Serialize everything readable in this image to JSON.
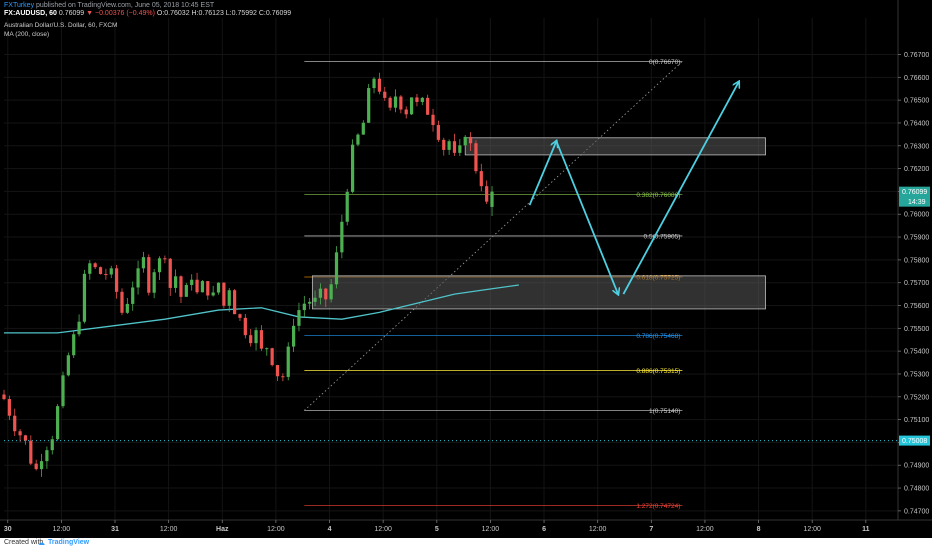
{
  "header": {
    "author": "FXTurkey",
    "published_text": "published on TradingView.com, June 05, 2018 10:45 EST",
    "symbol": "FX:AUDUSD, 60",
    "last": "0.76099",
    "change": "▼ −0.00376 (−0.49%)",
    "ohlc": "O:0.76032 H:0.76123 L:0.75992 C:0.76099"
  },
  "legend": {
    "name": "Australian Dollar/U.S. Dollar, 60, FXCM",
    "indicator": "MA (200, close)"
  },
  "footer": {
    "created_with": "Created with",
    "brand": "TradingView"
  },
  "colors": {
    "bull": "#26a69a",
    "bull_bright": "#4caf50",
    "bear": "#ef5350",
    "ma": "#4fc3c9",
    "arrow": "#4dd0e1",
    "zone_fill": "#5a5a5a",
    "zone_stroke": "#bdbdbd"
  },
  "chart_data": {
    "type": "candlestick",
    "symbol": "AUDUSD",
    "timeframe": "60",
    "ylim": [
      0.7466,
      0.7686
    ],
    "y_ticks": [
      "0.76700",
      "0.76600",
      "0.76500",
      "0.76400",
      "0.76300",
      "0.76200",
      "0.76100",
      "0.76000",
      "0.75900",
      "0.75800",
      "0.75700",
      "0.75600",
      "0.75500",
      "0.75400",
      "0.75300",
      "0.75200",
      "0.75100",
      "0.75000",
      "0.74900",
      "0.74800",
      "0.74700"
    ],
    "x_ticks": [
      {
        "label": "30",
        "t": 0.7
      },
      {
        "label": "12:00",
        "t": 10.7
      },
      {
        "label": "31",
        "t": 20.7
      },
      {
        "label": "12:00",
        "t": 30.7
      },
      {
        "label": "Haz",
        "t": 40.7
      },
      {
        "label": "12:00",
        "t": 50.7
      },
      {
        "label": "4",
        "t": 60.7
      },
      {
        "label": "12:00",
        "t": 70.7
      },
      {
        "label": "5",
        "t": 80.7
      },
      {
        "label": "12:00",
        "t": 90.7
      },
      {
        "label": "6",
        "t": 100.7
      },
      {
        "label": "12:00",
        "t": 110.7
      },
      {
        "label": "7",
        "t": 120.7
      },
      {
        "label": "12:00",
        "t": 130.7
      },
      {
        "label": "8",
        "t": 140.7
      },
      {
        "label": "12:00",
        "t": 150.7
      },
      {
        "label": "11",
        "t": 160.7
      }
    ],
    "price_labels": [
      {
        "value": 0.76099,
        "text": "0.76099",
        "sub": "14:39",
        "color": "#26a69a"
      },
      {
        "value": 0.75008,
        "text": "0.75008",
        "color": "#26c6da"
      }
    ],
    "dotted_level": 0.75008,
    "fib_levels": [
      {
        "ratio": "0",
        "value": 0.7667,
        "color": "#cfcfcf"
      },
      {
        "ratio": "0.382",
        "value": 0.76086,
        "color": "#8bc34a"
      },
      {
        "ratio": "0.5",
        "value": 0.75905,
        "color": "#cfcfcf"
      },
      {
        "ratio": "0.618",
        "value": 0.75725,
        "color": "#ff9800"
      },
      {
        "ratio": "0.786",
        "value": 0.75468,
        "color": "#2196f3"
      },
      {
        "ratio": "0.886",
        "value": 0.75315,
        "color": "#ffeb3b"
      },
      {
        "ratio": "1",
        "value": 0.7514,
        "color": "#cfcfcf"
      },
      {
        "ratio": "1.272",
        "value": 0.74724,
        "color": "#f44336"
      }
    ],
    "fib_t_range": [
      56,
      126.5
    ],
    "fib_trend_line": {
      "t1": 56,
      "p1": 0.7514,
      "t2": 126.5,
      "p2": 0.7667
    },
    "zones": [
      {
        "t1": 86,
        "t2": 142,
        "top": 0.76335,
        "bottom": 0.7626
      },
      {
        "t1": 57.5,
        "t2": 142,
        "top": 0.7573,
        "bottom": 0.75585
      }
    ],
    "projection_arrows": [
      {
        "t1": 98,
        "p1": 0.7604,
        "t2": 103,
        "p2": 0.7632
      },
      {
        "t1": 103,
        "p1": 0.7632,
        "t2": 114.5,
        "p2": 0.7565
      },
      {
        "t1": 115.5,
        "p1": 0.7565,
        "t2": 137,
        "p2": 0.7658
      }
    ],
    "ma200": {
      "name": "MA (200, close)",
      "points": [
        [
          0,
          0.7548
        ],
        [
          10,
          0.7548
        ],
        [
          20,
          0.7551
        ],
        [
          30,
          0.7554
        ],
        [
          40,
          0.7558
        ],
        [
          48,
          0.7559
        ],
        [
          55,
          0.7555
        ],
        [
          63,
          0.7554
        ],
        [
          70,
          0.7557
        ],
        [
          77,
          0.7561
        ],
        [
          84,
          0.7565
        ],
        [
          90,
          0.7567
        ],
        [
          96,
          0.7569
        ]
      ]
    },
    "candles": []
  }
}
